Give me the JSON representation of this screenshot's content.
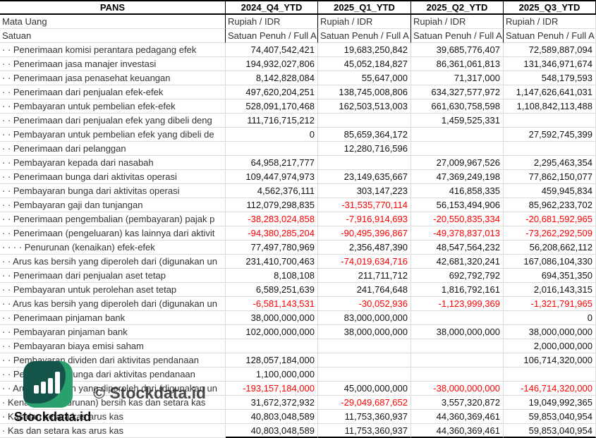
{
  "table": {
    "ticker": "PANS",
    "columns": [
      "2024_Q4_YTD",
      "2025_Q1_YTD",
      "2025_Q2_YTD",
      "2025_Q3_YTD"
    ],
    "meta_rows": [
      {
        "label": "Mata Uang",
        "values": [
          "Rupiah / IDR",
          "Rupiah / IDR",
          "Rupiah / IDR",
          "Rupiah / IDR"
        ]
      },
      {
        "label": "Satuan",
        "values": [
          "Satuan Penuh / Full A",
          "Satuan Penuh / Full A",
          "Satuan Penuh / Full A",
          "Satuan Penuh / Full A"
        ]
      }
    ],
    "rows": [
      {
        "label": "· · Penerimaan komisi perantara pedagang efek",
        "values": [
          "74,407,542,421",
          "19,683,250,842",
          "39,685,776,407",
          "72,589,887,094"
        ]
      },
      {
        "label": "· · Penerimaan jasa manajer investasi",
        "values": [
          "194,932,027,806",
          "45,052,184,827",
          "86,361,061,813",
          "131,346,971,674"
        ]
      },
      {
        "label": "· · Penerimaan jasa penasehat keuangan",
        "values": [
          "8,142,828,084",
          "55,647,000",
          "71,317,000",
          "548,179,593"
        ]
      },
      {
        "label": "· · Penerimaan dari penjualan efek-efek",
        "values": [
          "497,620,204,251",
          "138,745,008,806",
          "634,327,577,972",
          "1,147,626,641,031"
        ]
      },
      {
        "label": "· · Pembayaran untuk pembelian efek-efek",
        "values": [
          "528,091,170,468",
          "162,503,513,003",
          "661,630,758,598",
          "1,108,842,113,488"
        ]
      },
      {
        "label": "· · Penerimaan dari penjualan efek yang dibeli deng",
        "values": [
          "111,716,715,212",
          "",
          "1,459,525,331",
          ""
        ]
      },
      {
        "label": "· · Pembayaran untuk pembelian efek yang dibeli de",
        "values": [
          "0",
          "85,659,364,172",
          "",
          "27,592,745,399"
        ]
      },
      {
        "label": "· · Penerimaan dari pelanggan",
        "values": [
          "",
          "12,280,716,596",
          "",
          ""
        ]
      },
      {
        "label": "· · Pembayaran kepada dari nasabah",
        "values": [
          "64,958,217,777",
          "",
          "27,009,967,526",
          "2,295,463,354"
        ]
      },
      {
        "label": "· · Penerimaan bunga dari aktivitas operasi",
        "values": [
          "109,447,974,973",
          "23,149,635,667",
          "47,369,249,198",
          "77,862,150,077"
        ]
      },
      {
        "label": "· · Pembayaran bunga dari aktivitas operasi",
        "values": [
          "4,562,376,111",
          "303,147,223",
          "416,858,335",
          "459,945,834"
        ]
      },
      {
        "label": "· · Pembayaran gaji dan tunjangan",
        "values": [
          "112,079,298,835",
          "-31,535,770,114",
          "56,153,494,906",
          "85,962,233,702"
        ]
      },
      {
        "label": "· · Penerimaan pengembalian (pembayaran) pajak p",
        "values": [
          "-38,283,024,858",
          "-7,916,914,693",
          "-20,550,835,334",
          "-20,681,592,965"
        ]
      },
      {
        "label": "· · Penerimaan (pengeluaran) kas lainnya dari aktivit",
        "values": [
          "-94,380,285,204",
          "-90,495,396,867",
          "-49,378,837,013",
          "-73,262,292,509"
        ]
      },
      {
        "label": "· · · · Penurunan (kenaikan) efek-efek",
        "values": [
          "77,497,780,969",
          "2,356,487,390",
          "48,547,564,232",
          "56,208,662,112"
        ]
      },
      {
        "label": "· · Arus kas bersih yang diperoleh dari (digunakan un",
        "values": [
          "231,410,700,463",
          "-74,019,634,716",
          "42,681,320,241",
          "167,086,104,330"
        ]
      },
      {
        "label": "· · Penerimaan dari penjualan aset tetap",
        "values": [
          "8,108,108",
          "211,711,712",
          "692,792,792",
          "694,351,350"
        ]
      },
      {
        "label": "· · Pembayaran untuk perolehan aset tetap",
        "values": [
          "6,589,251,639",
          "241,764,648",
          "1,816,792,161",
          "2,016,143,315"
        ]
      },
      {
        "label": "· · Arus kas bersih yang diperoleh dari (digunakan un",
        "values": [
          "-6,581,143,531",
          "-30,052,936",
          "-1,123,999,369",
          "-1,321,791,965"
        ]
      },
      {
        "label": "· · Penerimaan pinjaman bank",
        "values": [
          "38,000,000,000",
          "83,000,000,000",
          "",
          "0"
        ]
      },
      {
        "label": "· · Pembayaran pinjaman bank",
        "values": [
          "102,000,000,000",
          "38,000,000,000",
          "38,000,000,000",
          "38,000,000,000"
        ]
      },
      {
        "label": "· · Pembayaran biaya emisi saham",
        "values": [
          "",
          "",
          "",
          "2,000,000,000"
        ]
      },
      {
        "label": "· · Pembayaran dividen dari aktivitas pendanaan",
        "values": [
          "128,057,184,000",
          "",
          "",
          "106,714,320,000"
        ]
      },
      {
        "label": "· · Pembayaran bunga dari aktivitas pendanaan",
        "values": [
          "1,100,000,000",
          "",
          "",
          ""
        ]
      },
      {
        "label": "· · Arus kas bersih yang diperoleh dari (digunakan un",
        "values": [
          "-193,157,184,000",
          "45,000,000,000",
          "-38,000,000,000",
          "-146,714,320,000"
        ]
      },
      {
        "label": "· Kenaikan (penurunan) bersih kas dan setara kas",
        "values": [
          "31,672,372,932",
          "-29,049,687,652",
          "3,557,320,872",
          "19,049,992,365"
        ]
      },
      {
        "label": "· Kas dan setara kas arus kas",
        "values": [
          "40,803,048,589",
          "11,753,360,937",
          "44,360,369,461",
          "59,853,040,954"
        ]
      },
      {
        "label": "· Kas dan setara kas arus kas",
        "values": [
          "40,803,048,589",
          "11,753,360,937",
          "44,360,369,461",
          "59,853,040,954"
        ]
      }
    ]
  },
  "watermark": {
    "logo_text": "Stockdata.id",
    "copyright_text": "© Stockdata.id",
    "icon": "bar-chart-icon"
  },
  "colors": {
    "negative_value": "#ff0000",
    "logo_dark_teal": "#14544b",
    "logo_green": "#2aa06c",
    "header_border": "#000000",
    "gridline": "#dcdcdc"
  }
}
